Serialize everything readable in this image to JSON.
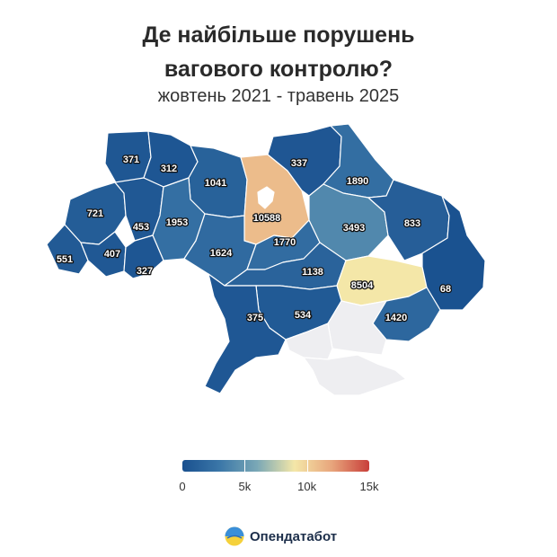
{
  "title_line1": "Де найбільше порушень",
  "title_line2": "вагового контролю?",
  "subtitle": "жовтень 2021 - травень 2025",
  "brand": {
    "name": "Опендатабот",
    "icon": "opendatabot-logo-icon"
  },
  "colors": {
    "scale": [
      "#19508f",
      "#3b77a8",
      "#7aa8b6",
      "#f4e7a8",
      "#e8a57c",
      "#c83f3a"
    ],
    "no_data": "#eeeef1",
    "labels": "#ffffff"
  },
  "legend": {
    "min": 0,
    "max": 15000,
    "ticks": [
      "0",
      "5k",
      "10k",
      "15k"
    ]
  },
  "regions": [
    {
      "name": "Volyn",
      "value": 371
    },
    {
      "name": "Rivne",
      "value": 312
    },
    {
      "name": "Zhytomyr",
      "value": 1041
    },
    {
      "name": "Kyiv (oblast)",
      "value": 10588
    },
    {
      "name": "Chernihiv",
      "value": 337
    },
    {
      "name": "Sumy",
      "value": 1890
    },
    {
      "name": "Lviv",
      "value": 721
    },
    {
      "name": "Ternopil",
      "value": 453
    },
    {
      "name": "Khmelnytskyi",
      "value": 1953
    },
    {
      "name": "Vinnytsia",
      "value": 1624
    },
    {
      "name": "Cherkasy",
      "value": 1770
    },
    {
      "name": "Poltava",
      "value": 3493
    },
    {
      "name": "Kharkiv",
      "value": 833
    },
    {
      "name": "Zakarpattia",
      "value": 551
    },
    {
      "name": "Ivano-Frankivsk",
      "value": 407
    },
    {
      "name": "Chernivtsi",
      "value": 327
    },
    {
      "name": "Kirovohrad",
      "value": 1138
    },
    {
      "name": "Dnipropetrovsk",
      "value": 8504
    },
    {
      "name": "Luhansk",
      "value": 68
    },
    {
      "name": "Donetsk",
      "value": 1420
    },
    {
      "name": "Mykolaiv",
      "value": 534
    },
    {
      "name": "Odesa",
      "value": 375
    },
    {
      "name": "Zaporizhzhia",
      "value": null
    },
    {
      "name": "Kherson",
      "value": null
    },
    {
      "name": "Crimea",
      "value": null
    },
    {
      "name": "Kyiv (city)",
      "value": null
    }
  ]
}
